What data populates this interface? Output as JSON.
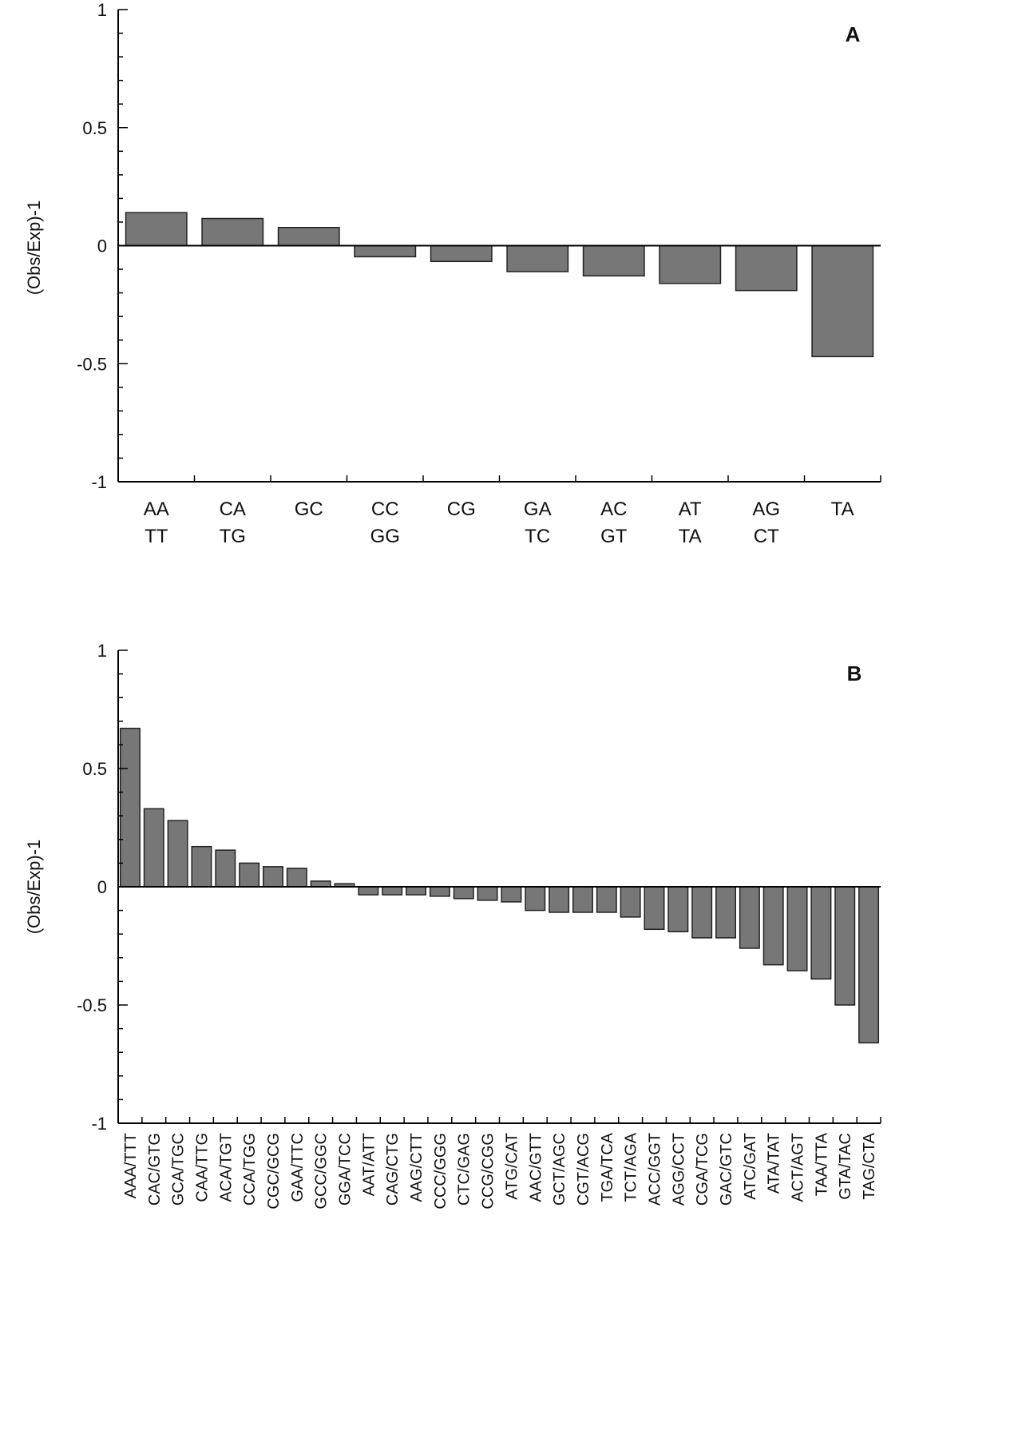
{
  "chart_data": [
    {
      "type": "bar",
      "panel_label": "A",
      "ylabel": "(Obs/Exp)-1",
      "ylim": [
        -1,
        1
      ],
      "yticks": [
        "1",
        "0.5",
        "0",
        "-0.5",
        "-1"
      ],
      "grid": false,
      "bar_color": "#777777",
      "categories": [
        [
          "AA",
          "TT"
        ],
        [
          "CA",
          "TG"
        ],
        [
          "GC"
        ],
        [
          "CC",
          "GG"
        ],
        [
          "CG"
        ],
        [
          "GA",
          "TC"
        ],
        [
          "AC",
          "GT"
        ],
        [
          "AT",
          "TA"
        ],
        [
          "AG",
          "CT"
        ],
        [
          "TA"
        ]
      ],
      "values": [
        0.14,
        0.115,
        0.077,
        -0.047,
        -0.067,
        -0.11,
        -0.128,
        -0.16,
        -0.19,
        -0.47
      ]
    },
    {
      "type": "bar",
      "panel_label": "B",
      "ylabel": "(Obs/Exp)-1",
      "ylim": [
        -1,
        1
      ],
      "yticks": [
        "1",
        "0.5",
        "0",
        "-0.5",
        "-1"
      ],
      "grid": false,
      "bar_color": "#777777",
      "categories": [
        "AAA/TTT",
        "CAC/GTG",
        "GCA/TGC",
        "CAA/TTG",
        "ACA/TGT",
        "CCA/TGG",
        "CGC/GCG",
        "GAA/TTC",
        "GCC/GGC",
        "GGA/TCC",
        "AAT/ATT",
        "CAG/CTG",
        "AAG/CTT",
        "CCC/GGG",
        "CTC/GAG",
        "CCG/CGG",
        "ATG/CAT",
        "AAC/GTT",
        "GCT/AGC",
        "CGT/ACG",
        "TGA/TCA",
        "TCT/AGA",
        "ACC/GGT",
        "AGG/CCT",
        "CGA/TCG",
        "GAC/GTC",
        "ATC/GAT",
        "ATA/TAT",
        "ACT/AGT",
        "TAA/TTA",
        "GTA/TAC",
        "TAG/CTA"
      ],
      "values": [
        0.67,
        0.33,
        0.28,
        0.17,
        0.155,
        0.1,
        0.085,
        0.078,
        0.024,
        0.013,
        -0.034,
        -0.034,
        -0.034,
        -0.04,
        -0.05,
        -0.057,
        -0.064,
        -0.1,
        -0.108,
        -0.108,
        -0.108,
        -0.128,
        -0.18,
        -0.19,
        -0.216,
        -0.216,
        -0.26,
        -0.33,
        -0.355,
        -0.39,
        -0.5,
        -0.66
      ]
    }
  ]
}
